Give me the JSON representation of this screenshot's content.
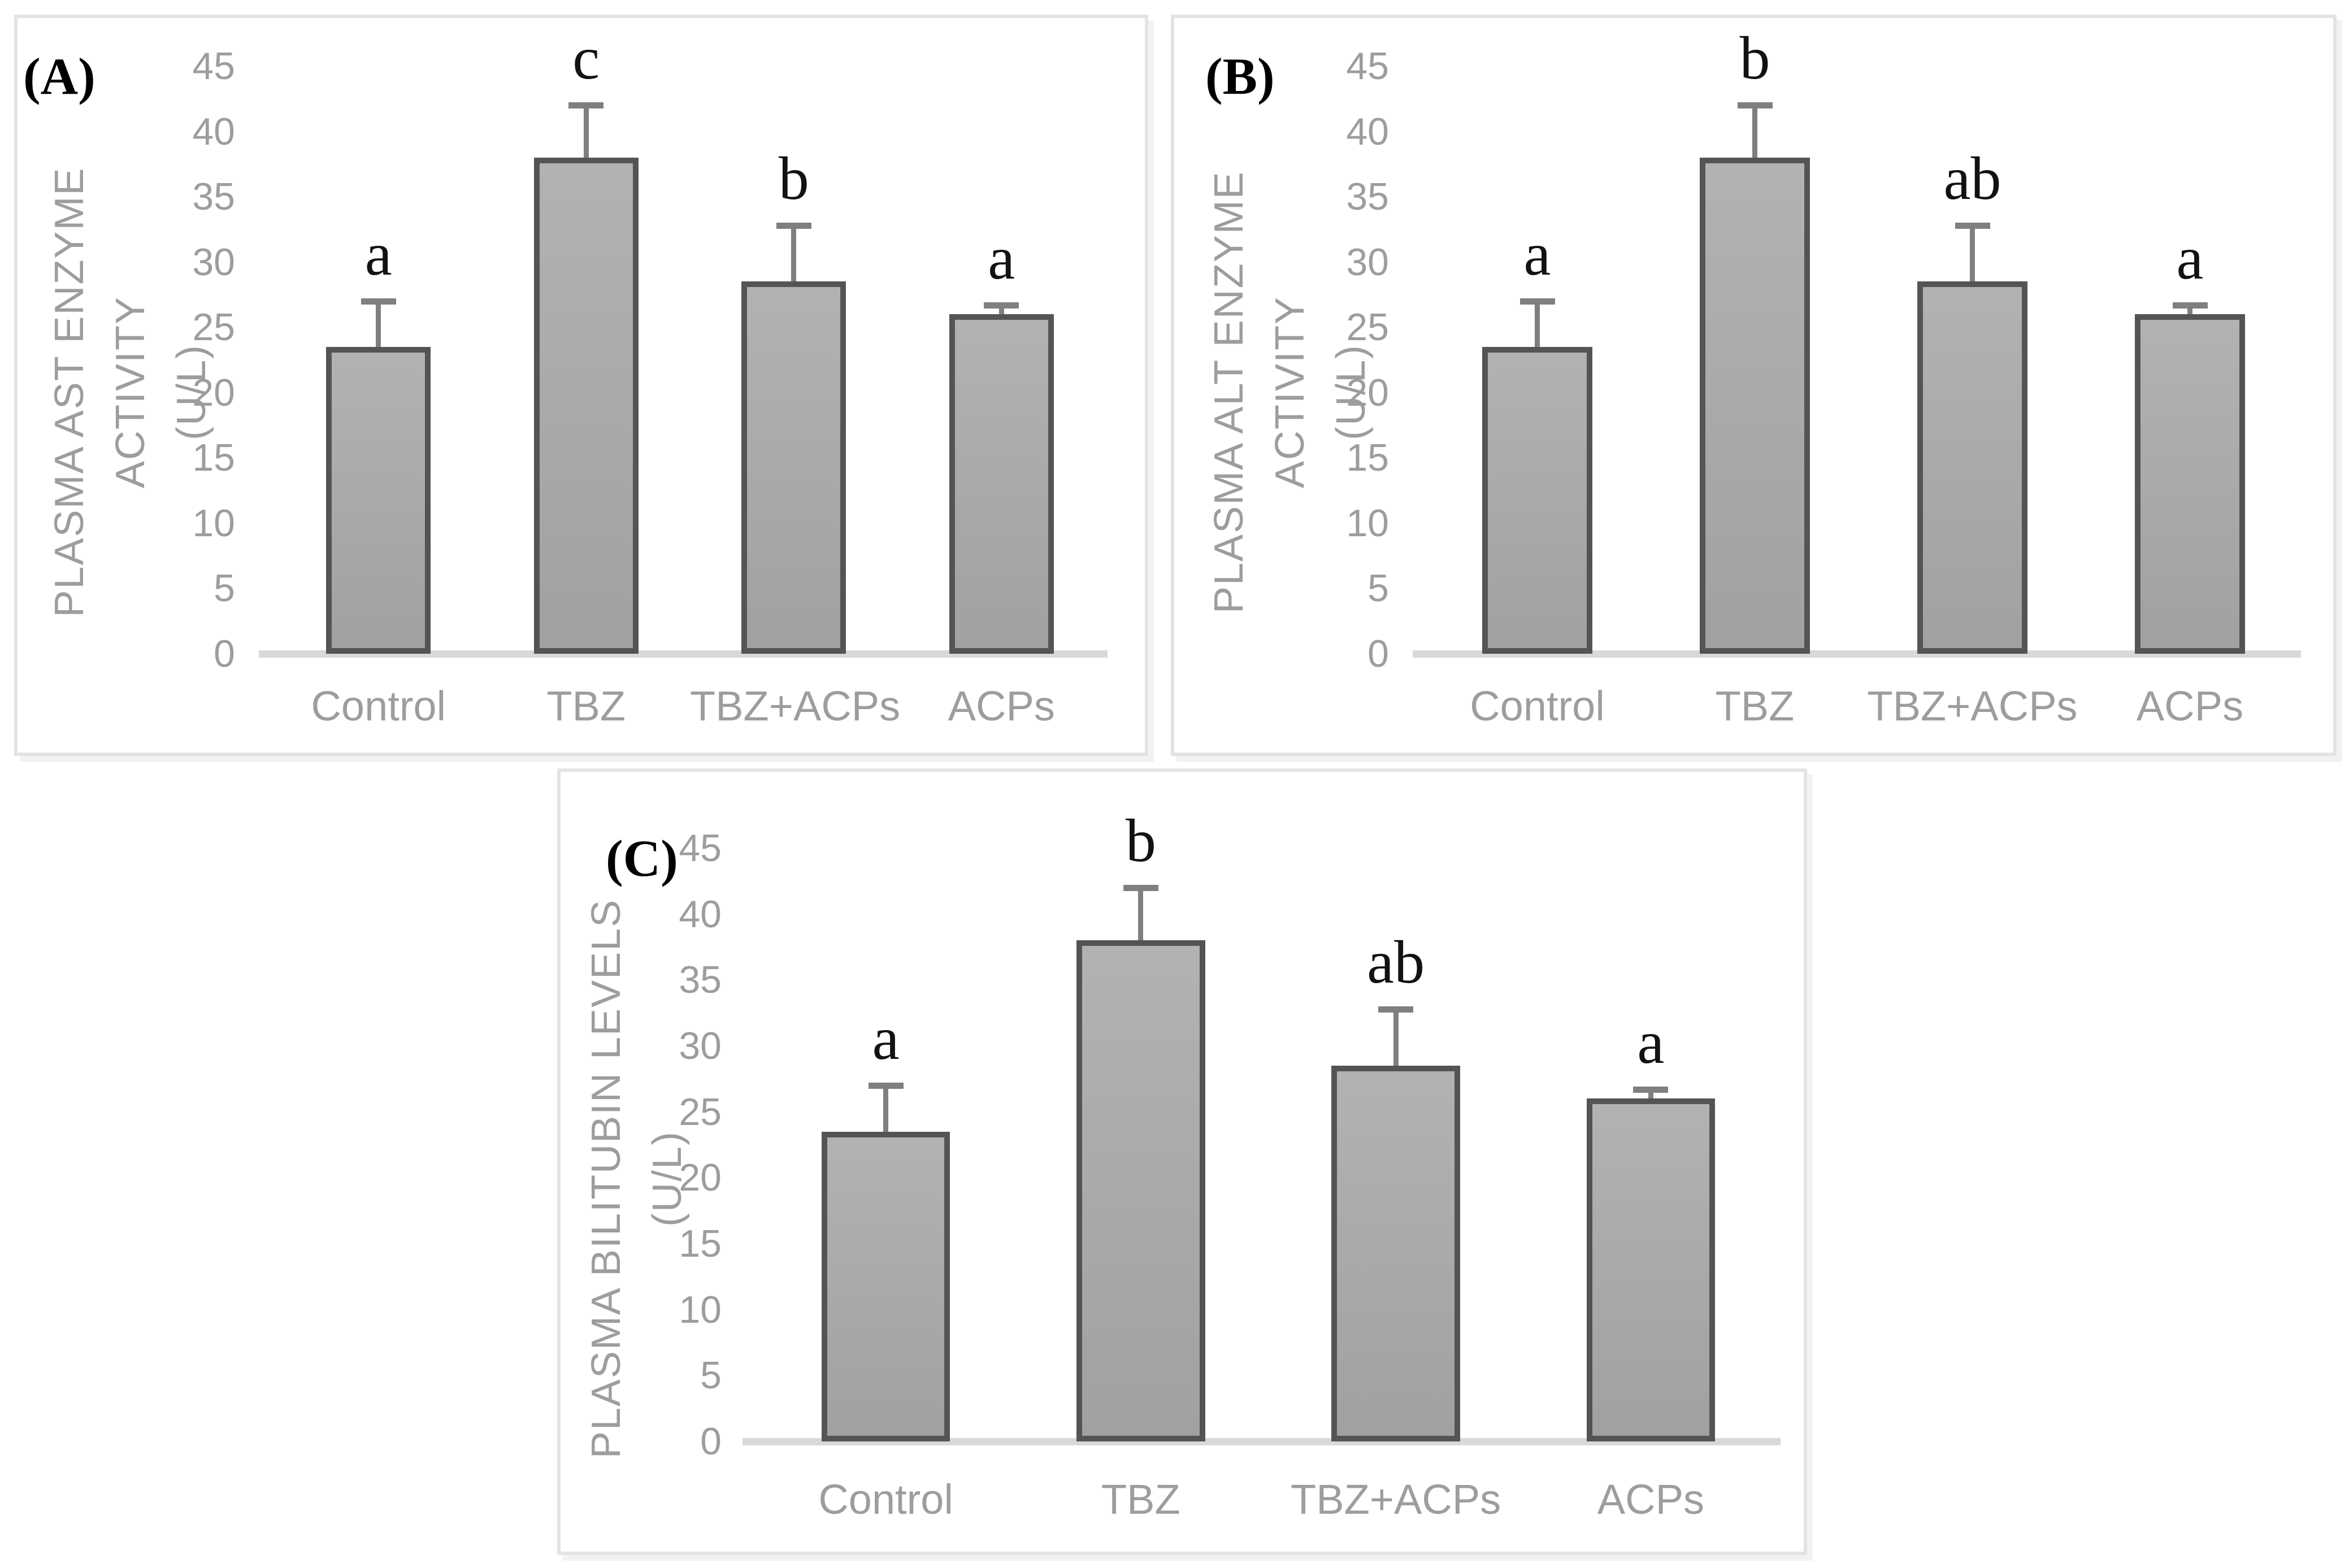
{
  "page": {
    "background": "#ffffff"
  },
  "colors": {
    "panel_border": "#e3e3e3",
    "panel_letter": "#000000",
    "axis_text": "#9d9d9d",
    "baseline": "#d9d9d9",
    "bar_fill_top": "#b2b2b2",
    "bar_fill_bottom": "#a1a1a1",
    "bar_border": "#545454",
    "error_bar": "#7f7f7f",
    "sig_letter": "#121212"
  },
  "chart_data": [
    {
      "type": "bar",
      "panel_label": "(A)",
      "ylabel_lines": [
        "PLASMA AST ENZYME ACTIVITY",
        "(U/L)"
      ],
      "xlabel": "",
      "categories": [
        "Control",
        "TBZ",
        "TBZ+ACPs",
        "ACPs"
      ],
      "values": [
        23.5,
        38,
        28.5,
        26
      ],
      "errors": [
        3.5,
        4,
        4.3,
        0.7
      ],
      "sig_letters": [
        "a",
        "c",
        "b",
        "a"
      ],
      "yticks": [
        45,
        40,
        35,
        30,
        25,
        20,
        15,
        10,
        5,
        0
      ],
      "ylim": [
        0,
        45
      ],
      "grid": false,
      "legend": "none"
    },
    {
      "type": "bar",
      "panel_label": "(B)",
      "ylabel_lines": [
        "PLASMA ALT ENZYME ACTIVITY",
        "(U/L)"
      ],
      "xlabel": "",
      "categories": [
        "Control",
        "TBZ",
        "TBZ+ACPs",
        "ACPs"
      ],
      "values": [
        23.5,
        38,
        28.5,
        26
      ],
      "errors": [
        3.5,
        4,
        4.3,
        0.7
      ],
      "sig_letters": [
        "a",
        "b",
        "ab",
        "a"
      ],
      "yticks": [
        45,
        40,
        35,
        30,
        25,
        20,
        15,
        10,
        5,
        0
      ],
      "ylim": [
        0,
        45
      ],
      "grid": false,
      "legend": "none"
    },
    {
      "type": "bar",
      "panel_label": "(C)",
      "ylabel_lines": [
        "PLASMA BILITUBIN LEVELS (U/L)"
      ],
      "xlabel": "",
      "categories": [
        "Control",
        "TBZ",
        "TBZ+ACPs",
        "ACPs"
      ],
      "values": [
        23.5,
        38,
        28.5,
        26
      ],
      "errors": [
        3.5,
        4,
        4.3,
        0.7
      ],
      "sig_letters": [
        "a",
        "b",
        "ab",
        "a"
      ],
      "yticks": [
        45,
        40,
        35,
        30,
        25,
        20,
        15,
        10,
        5,
        0
      ],
      "ylim": [
        0,
        45
      ],
      "grid": false,
      "legend": "none"
    }
  ]
}
